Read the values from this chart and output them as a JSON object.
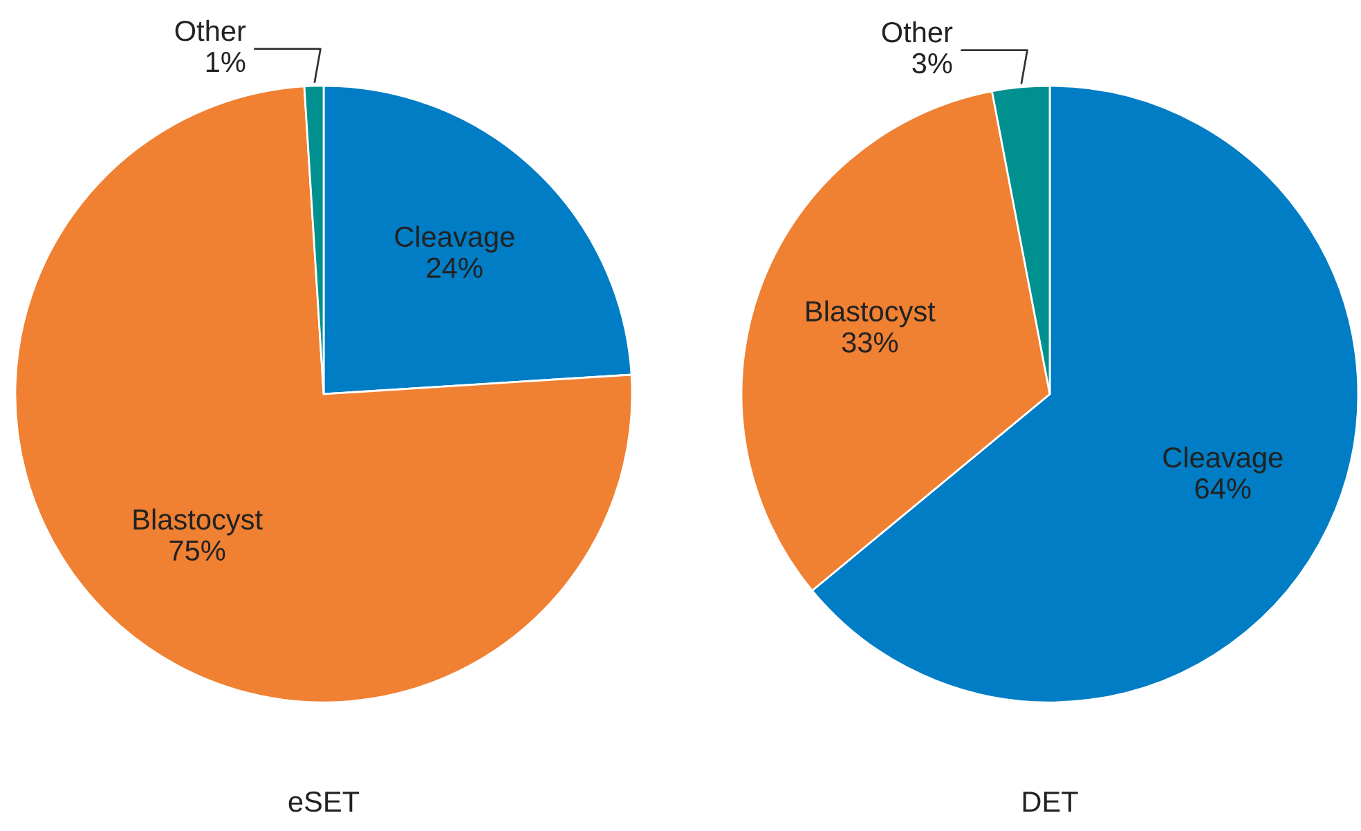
{
  "chart_data": [
    {
      "type": "pie",
      "title": "eSET",
      "categories": [
        "Cleavage",
        "Blastocyst",
        "Other"
      ],
      "values": [
        24,
        75,
        1
      ],
      "value_labels": [
        "24%",
        "75%",
        "1%"
      ],
      "colors": [
        "#007DC5",
        "#F08032",
        "#00908F"
      ],
      "legend": false
    },
    {
      "type": "pie",
      "title": "DET",
      "categories": [
        "Cleavage",
        "Blastocyst",
        "Other"
      ],
      "values": [
        64,
        33,
        3
      ],
      "value_labels": [
        "64%",
        "33%",
        "3%"
      ],
      "colors": [
        "#007DC5",
        "#F08032",
        "#00908F"
      ],
      "legend": false
    }
  ]
}
